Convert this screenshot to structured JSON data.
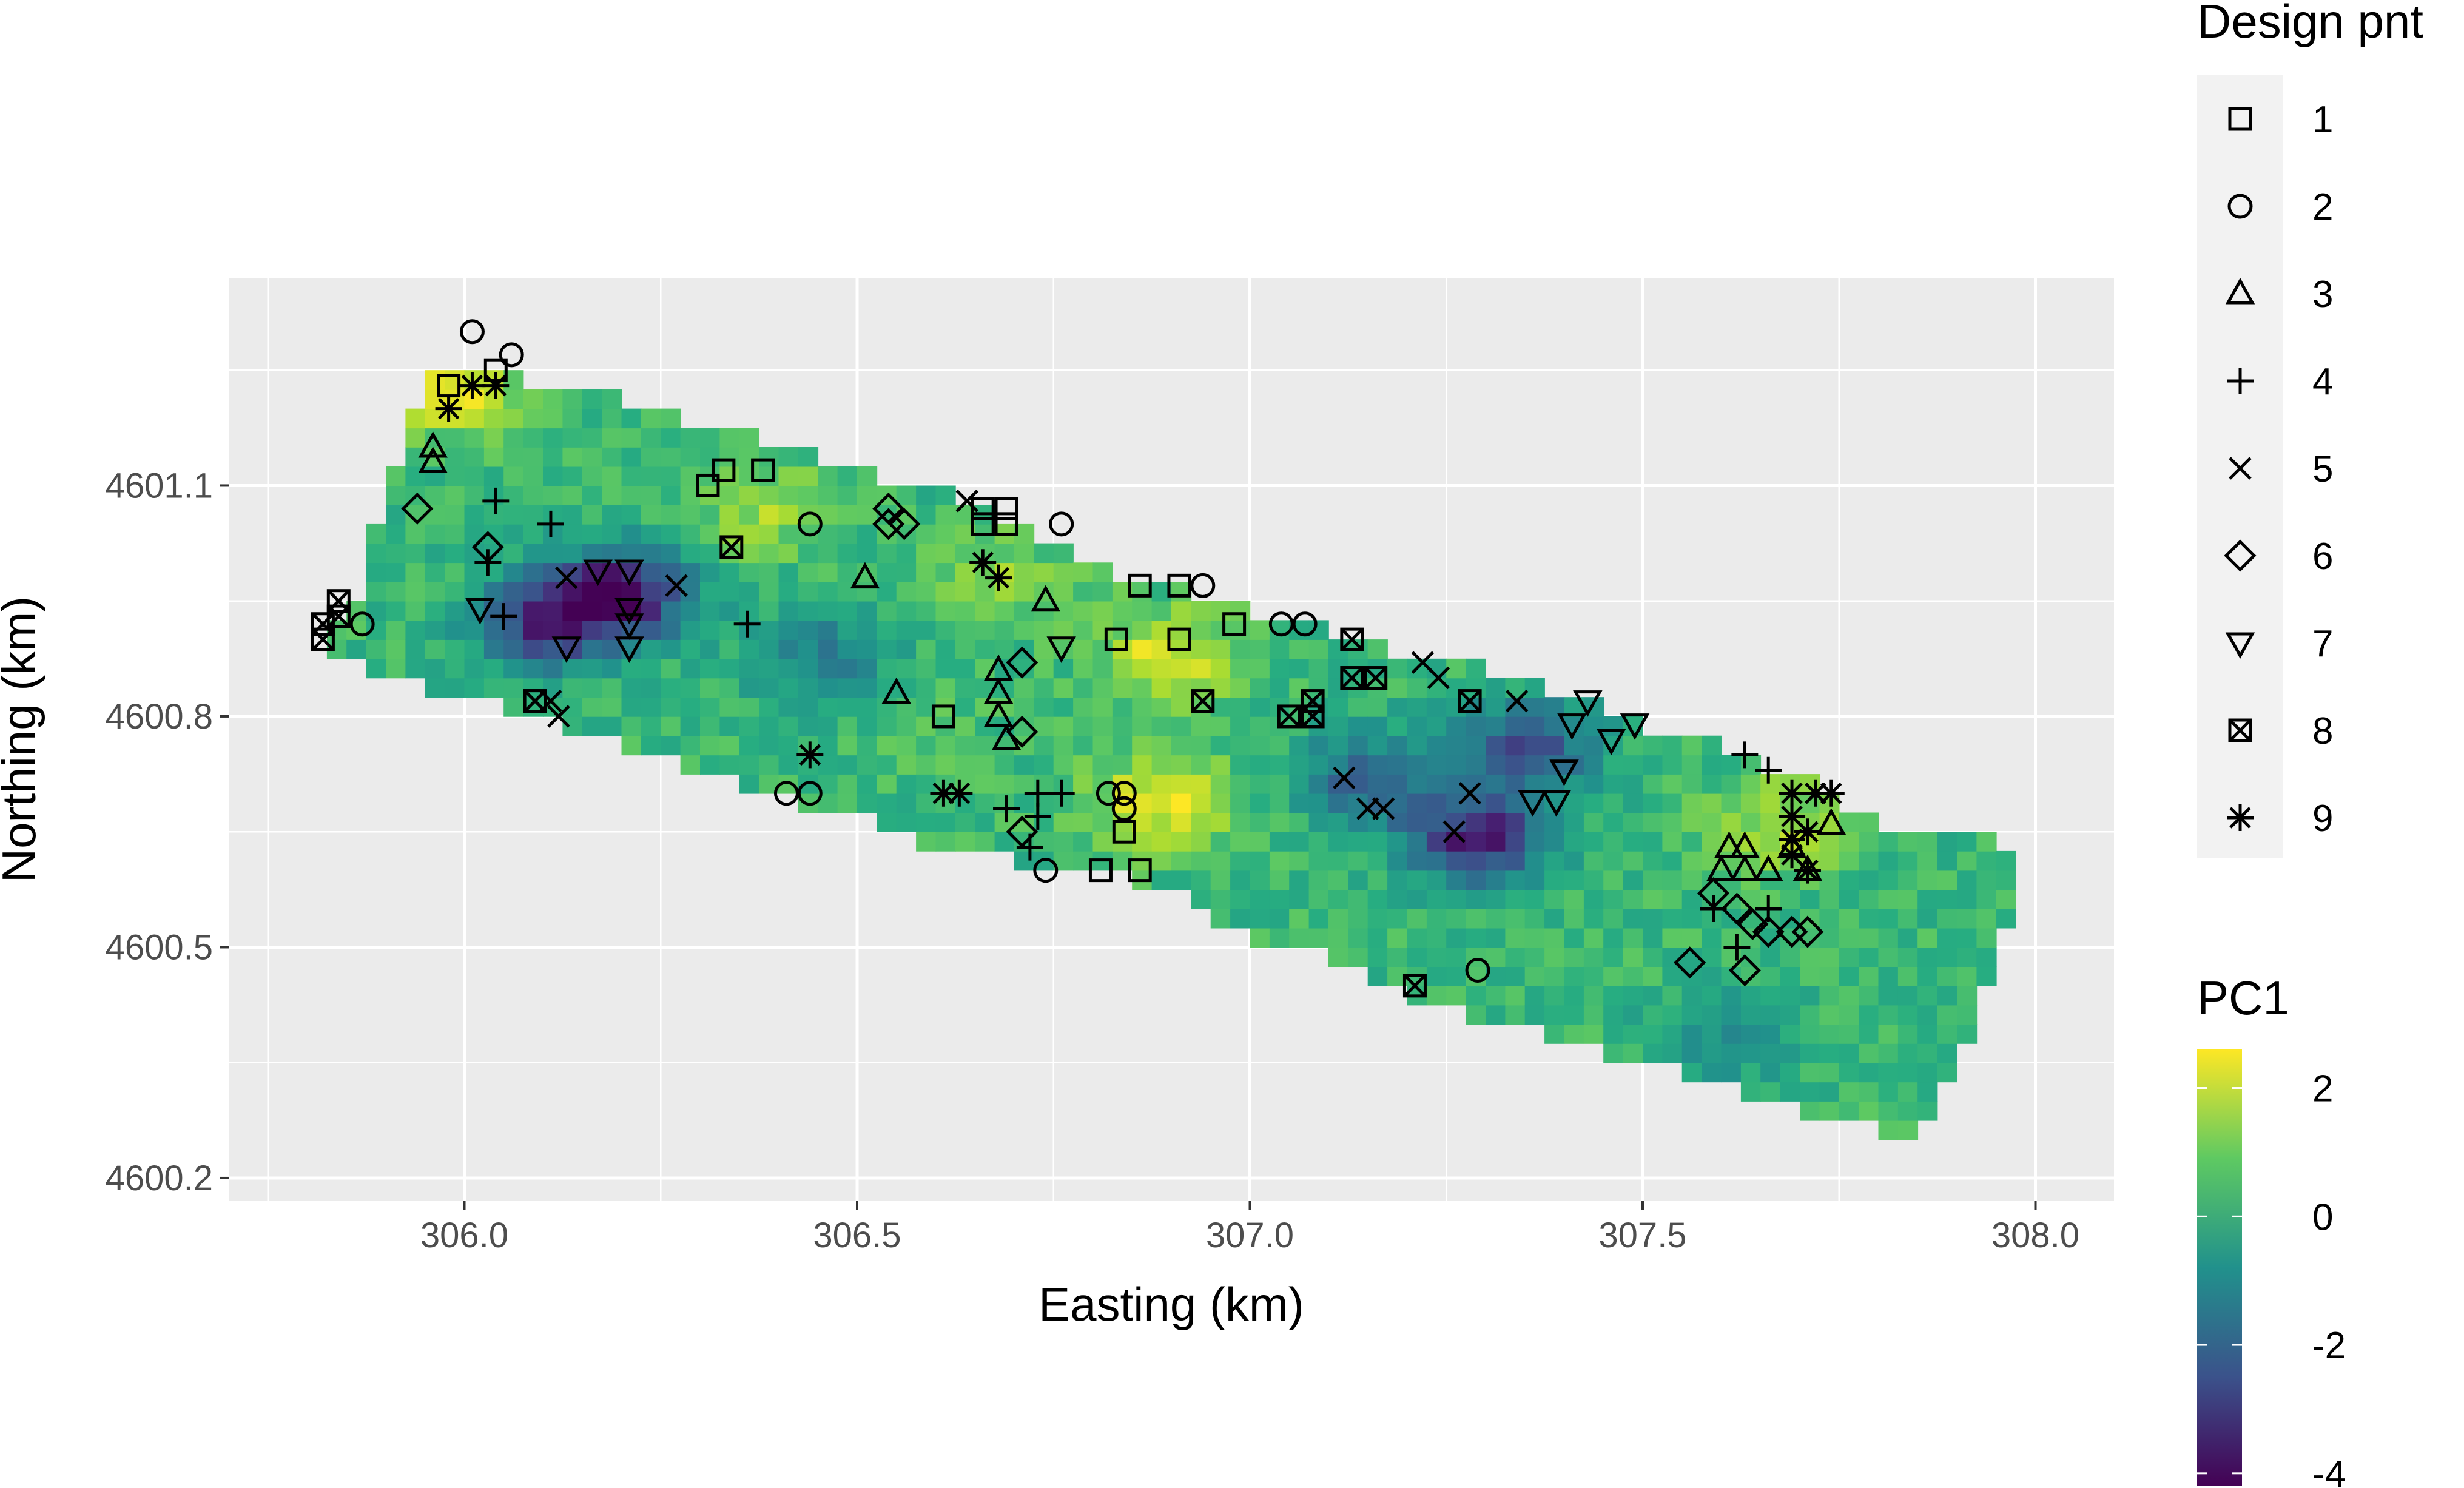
{
  "chart_data": {
    "type": "heatmap",
    "xlabel": "Easting (km)",
    "ylabel": "Northing (km)",
    "xlim": [
      305.7,
      308.1
    ],
    "ylim": [
      4600.17,
      4601.37
    ],
    "x_ticks": [
      306.0,
      306.5,
      307.0,
      307.5,
      308.0
    ],
    "x_tick_labels": [
      "306.0",
      "306.5",
      "307.0",
      "307.5",
      "308.0"
    ],
    "y_ticks": [
      4600.2,
      4600.5,
      4600.8,
      4601.1
    ],
    "y_tick_labels": [
      "4600.2",
      "4600.5",
      "4600.8",
      "4601.1"
    ],
    "grid": true,
    "legend_placement": "right",
    "fill": {
      "name": "PC1",
      "colormap": "viridis",
      "range": [
        -4.2,
        2.6
      ],
      "ticks": [
        2,
        0,
        -2,
        -4
      ],
      "tick_labels": [
        "2",
        "0",
        "-2",
        "-4"
      ],
      "colors": [
        "#440154",
        "#3b528b",
        "#21918c",
        "#5ec962",
        "#fde725"
      ],
      "boundary": [
        [
          305.82,
          4600.91
        ],
        [
          305.87,
          4600.97
        ],
        [
          305.89,
          4601.07
        ],
        [
          305.92,
          4601.14
        ],
        [
          305.94,
          4601.2
        ],
        [
          305.97,
          4601.25
        ],
        [
          306.05,
          4601.24
        ],
        [
          306.17,
          4601.22
        ],
        [
          306.35,
          4601.17
        ],
        [
          306.45,
          4601.14
        ],
        [
          306.55,
          4601.1
        ],
        [
          306.65,
          4601.08
        ],
        [
          306.75,
          4601.02
        ],
        [
          306.8,
          4600.99
        ],
        [
          306.9,
          4600.97
        ],
        [
          307.0,
          4600.94
        ],
        [
          307.1,
          4600.91
        ],
        [
          307.2,
          4600.88
        ],
        [
          307.35,
          4600.85
        ],
        [
          307.5,
          4600.79
        ],
        [
          307.6,
          4600.76
        ],
        [
          307.7,
          4600.72
        ],
        [
          307.8,
          4600.66
        ],
        [
          307.95,
          4600.65
        ],
        [
          307.98,
          4600.59
        ],
        [
          307.95,
          4600.5
        ],
        [
          307.9,
          4600.35
        ],
        [
          307.84,
          4600.24
        ],
        [
          307.78,
          4600.27
        ],
        [
          307.65,
          4600.3
        ],
        [
          307.5,
          4600.35
        ],
        [
          307.4,
          4600.38
        ],
        [
          307.3,
          4600.4
        ],
        [
          307.2,
          4600.44
        ],
        [
          307.1,
          4600.49
        ],
        [
          307.0,
          4600.51
        ],
        [
          306.9,
          4600.57
        ],
        [
          306.8,
          4600.6
        ],
        [
          306.7,
          4600.61
        ],
        [
          306.6,
          4600.63
        ],
        [
          306.5,
          4600.67
        ],
        [
          306.42,
          4600.69
        ],
        [
          306.3,
          4600.73
        ],
        [
          306.18,
          4600.77
        ],
        [
          306.1,
          4600.8
        ],
        [
          306.0,
          4600.82
        ],
        [
          305.9,
          4600.85
        ],
        [
          305.82,
          4600.89
        ]
      ],
      "hotspots": [
        {
          "x": 305.99,
          "y": 4601.22,
          "v": 2.2
        },
        {
          "x": 306.38,
          "y": 4601.07,
          "v": 1.6
        },
        {
          "x": 306.68,
          "y": 4600.98,
          "v": 1.4
        },
        {
          "x": 306.9,
          "y": 4600.88,
          "v": 2.3
        },
        {
          "x": 306.89,
          "y": 4600.69,
          "v": 2.5
        },
        {
          "x": 307.68,
          "y": 4600.66,
          "v": 1.8
        },
        {
          "x": 306.2,
          "y": 4600.96,
          "v": -3.8
        },
        {
          "x": 306.1,
          "y": 4600.92,
          "v": -2.8
        },
        {
          "x": 307.29,
          "y": 4600.64,
          "v": -3.6
        },
        {
          "x": 307.35,
          "y": 4600.76,
          "v": -2.6
        },
        {
          "x": 307.15,
          "y": 4600.72,
          "v": -2.1
        },
        {
          "x": 306.45,
          "y": 4600.88,
          "v": -1.3
        },
        {
          "x": 307.6,
          "y": 4600.38,
          "v": -1.0
        },
        {
          "x": 306.6,
          "y": 4600.77,
          "v": 0.7
        }
      ]
    },
    "shape_legend": {
      "name": "Design pnt",
      "entries": [
        {
          "label": "1",
          "symbol": "square"
        },
        {
          "label": "2",
          "symbol": "circle"
        },
        {
          "label": "3",
          "symbol": "triangle"
        },
        {
          "label": "4",
          "symbol": "plus"
        },
        {
          "label": "5",
          "symbol": "cross"
        },
        {
          "label": "6",
          "symbol": "diamond"
        },
        {
          "label": "7",
          "symbol": "triangle-down"
        },
        {
          "label": "8",
          "symbol": "square-cross"
        },
        {
          "label": "9",
          "symbol": "asterisk"
        }
      ]
    },
    "series": [
      {
        "name": "1",
        "points": [
          [
            305.98,
            4601.23
          ],
          [
            306.04,
            4601.25
          ],
          [
            306.31,
            4601.1
          ],
          [
            306.33,
            4601.12
          ],
          [
            306.38,
            4601.12
          ],
          [
            306.66,
            4601.05
          ],
          [
            306.66,
            4601.07
          ],
          [
            306.69,
            4601.05
          ],
          [
            306.69,
            4601.07
          ],
          [
            306.86,
            4600.97
          ],
          [
            306.91,
            4600.97
          ],
          [
            306.98,
            4600.92
          ],
          [
            306.83,
            4600.9
          ],
          [
            306.91,
            4600.9
          ],
          [
            306.61,
            4600.8
          ],
          [
            306.84,
            4600.65
          ],
          [
            306.81,
            4600.6
          ],
          [
            306.86,
            4600.6
          ]
        ]
      },
      {
        "name": "2",
        "points": [
          [
            306.01,
            4601.3
          ],
          [
            306.06,
            4601.27
          ],
          [
            305.87,
            4600.92
          ],
          [
            306.44,
            4601.05
          ],
          [
            306.76,
            4601.05
          ],
          [
            306.94,
            4600.97
          ],
          [
            307.04,
            4600.92
          ],
          [
            307.07,
            4600.92
          ],
          [
            306.82,
            4600.7
          ],
          [
            306.84,
            4600.7
          ],
          [
            306.84,
            4600.68
          ],
          [
            306.41,
            4600.7
          ],
          [
            306.44,
            4600.7
          ],
          [
            306.74,
            4600.6
          ],
          [
            307.29,
            4600.47
          ]
        ]
      },
      {
        "name": "3",
        "points": [
          [
            305.96,
            4601.15
          ],
          [
            305.96,
            4601.13
          ],
          [
            306.51,
            4600.98
          ],
          [
            306.55,
            4600.83
          ],
          [
            306.74,
            4600.95
          ],
          [
            306.68,
            4600.86
          ],
          [
            306.68,
            4600.83
          ],
          [
            306.68,
            4600.8
          ],
          [
            306.69,
            4600.77
          ],
          [
            307.61,
            4600.63
          ],
          [
            307.63,
            4600.63
          ],
          [
            307.6,
            4600.6
          ],
          [
            307.63,
            4600.6
          ],
          [
            307.66,
            4600.6
          ],
          [
            307.69,
            4600.63
          ],
          [
            307.71,
            4600.6
          ],
          [
            307.74,
            4600.66
          ]
        ]
      },
      {
        "name": "4",
        "points": [
          [
            306.04,
            4601.08
          ],
          [
            306.11,
            4601.05
          ],
          [
            306.03,
            4601.0
          ],
          [
            306.05,
            4600.93
          ],
          [
            306.36,
            4600.92
          ],
          [
            306.73,
            4600.7
          ],
          [
            306.76,
            4600.7
          ],
          [
            306.69,
            4600.68
          ],
          [
            306.73,
            4600.67
          ],
          [
            306.72,
            4600.63
          ],
          [
            307.63,
            4600.75
          ],
          [
            307.66,
            4600.73
          ],
          [
            307.59,
            4600.55
          ],
          [
            307.66,
            4600.55
          ],
          [
            307.62,
            4600.5
          ]
        ]
      },
      {
        "name": "5",
        "points": [
          [
            306.13,
            4600.98
          ],
          [
            306.27,
            4600.97
          ],
          [
            306.64,
            4601.08
          ],
          [
            306.11,
            4600.82
          ],
          [
            306.12,
            4600.8
          ],
          [
            307.12,
            4600.72
          ],
          [
            307.15,
            4600.68
          ],
          [
            307.17,
            4600.68
          ],
          [
            307.22,
            4600.87
          ],
          [
            307.24,
            4600.85
          ],
          [
            307.34,
            4600.82
          ],
          [
            307.28,
            4600.7
          ],
          [
            307.26,
            4600.65
          ]
        ]
      },
      {
        "name": "6",
        "points": [
          305.94,
          4601.07
        ],
        "_note": ""
      }
    ]
  }
}
